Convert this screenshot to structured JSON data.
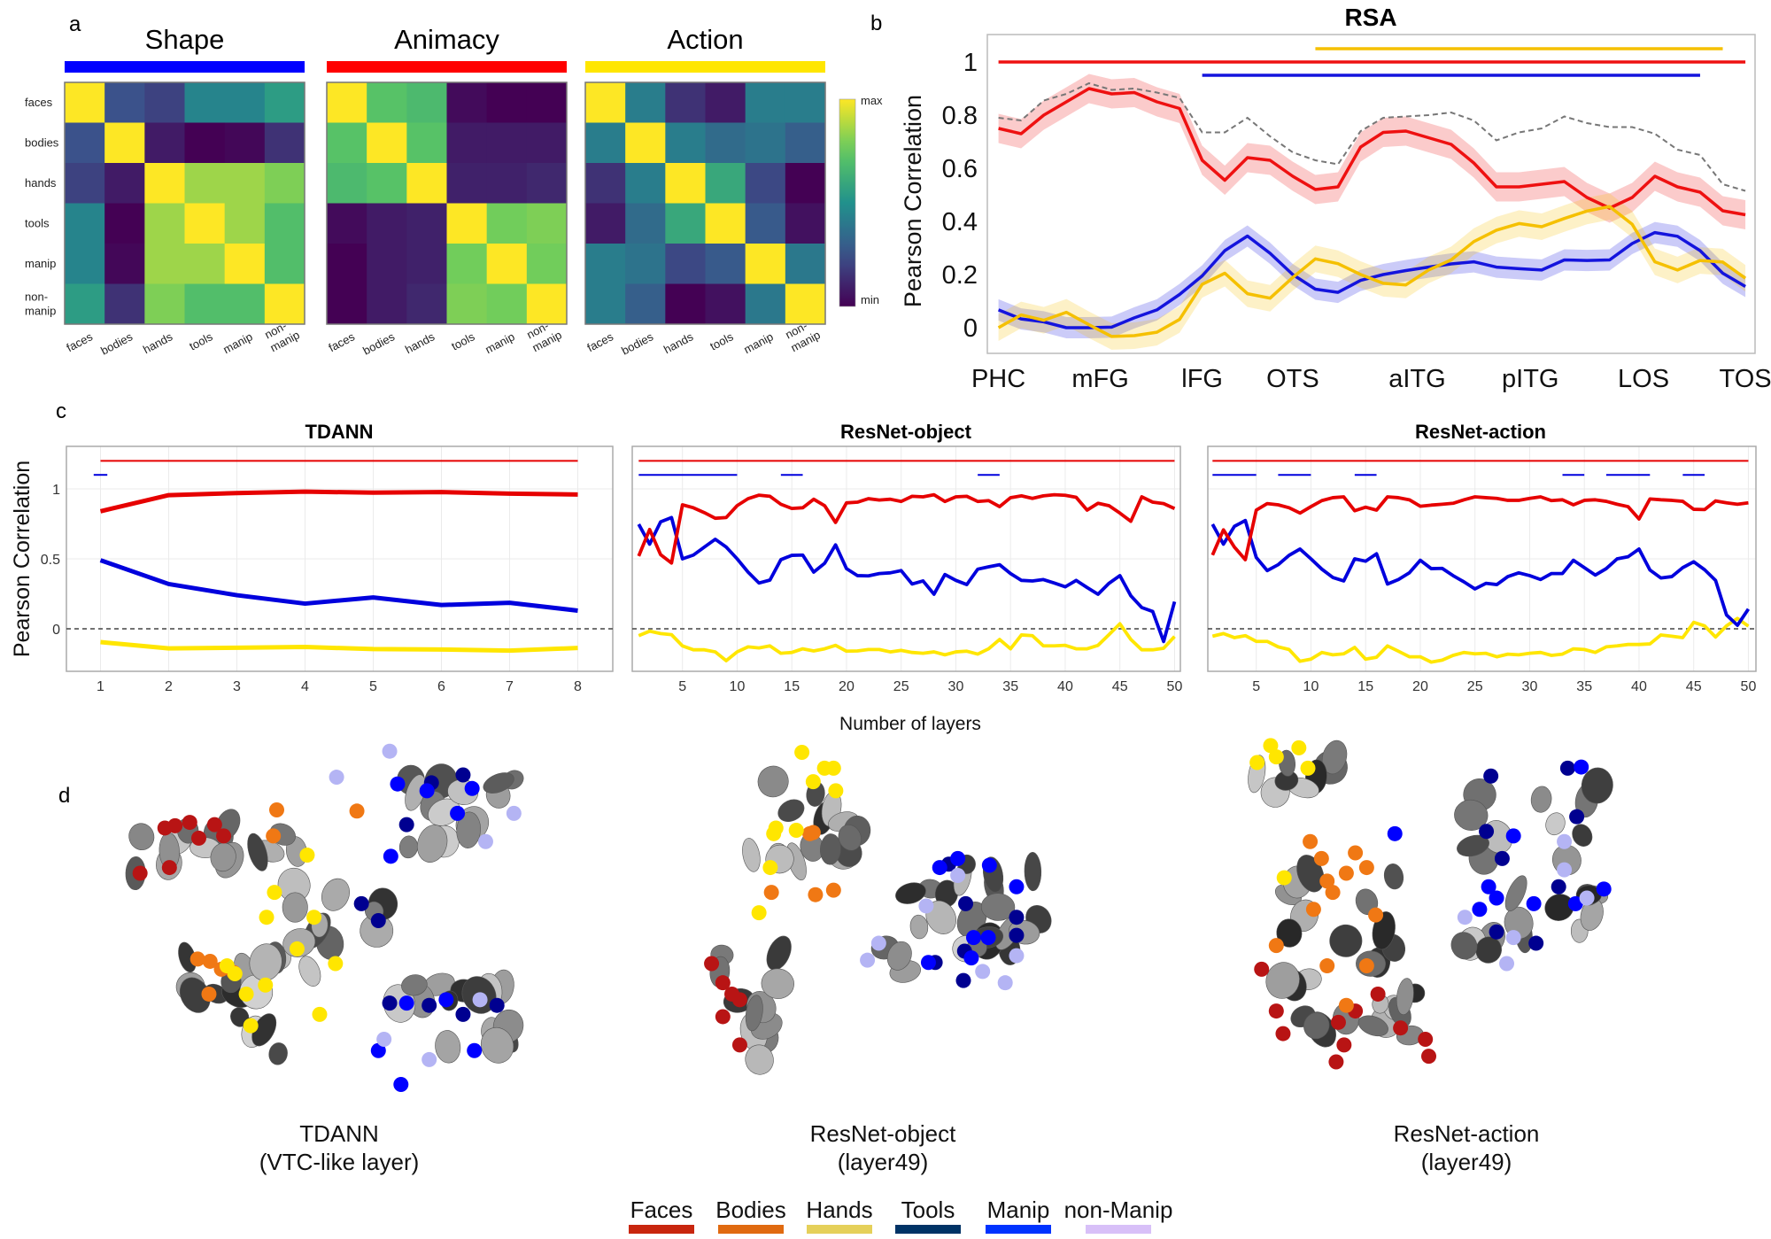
{
  "panel_labels": {
    "a": "a",
    "b": "b",
    "c": "c",
    "d": "d"
  },
  "colorbar": {
    "max_label": "max",
    "min_label": "min",
    "colormap": "viridis"
  },
  "chart_data": [
    {
      "type": "heatmap",
      "title": "Shape",
      "bar_color": "#0000ff",
      "row_labels": [
        "faces",
        "bodies",
        "hands",
        "tools",
        "manip",
        "non-manip"
      ],
      "col_labels": [
        "faces",
        "bodies",
        "hands",
        "tools",
        "manip",
        "non-manip"
      ],
      "values": [
        [
          1.0,
          0.25,
          0.2,
          0.45,
          0.45,
          0.55
        ],
        [
          0.25,
          1.0,
          0.08,
          0.0,
          0.02,
          0.15
        ],
        [
          0.2,
          0.08,
          1.0,
          0.85,
          0.85,
          0.8
        ],
        [
          0.45,
          0.0,
          0.85,
          1.0,
          0.85,
          0.7
        ],
        [
          0.45,
          0.02,
          0.85,
          0.85,
          1.0,
          0.7
        ],
        [
          0.55,
          0.15,
          0.8,
          0.7,
          0.7,
          1.0
        ]
      ]
    },
    {
      "type": "heatmap",
      "title": "Animacy",
      "bar_color": "#ff0000",
      "row_labels": [
        "faces",
        "bodies",
        "hands",
        "tools",
        "manip",
        "non-manip"
      ],
      "col_labels": [
        "faces",
        "bodies",
        "hands",
        "tools",
        "manip",
        "non-manip"
      ],
      "values": [
        [
          1.0,
          0.72,
          0.68,
          0.03,
          0.0,
          0.0
        ],
        [
          0.72,
          1.0,
          0.72,
          0.08,
          0.08,
          0.08
        ],
        [
          0.68,
          0.72,
          1.0,
          0.1,
          0.1,
          0.12
        ],
        [
          0.03,
          0.08,
          0.1,
          1.0,
          0.78,
          0.8
        ],
        [
          0.0,
          0.08,
          0.1,
          0.78,
          1.0,
          0.78
        ],
        [
          0.0,
          0.08,
          0.12,
          0.8,
          0.78,
          1.0
        ]
      ]
    },
    {
      "type": "heatmap",
      "title": "Action",
      "bar_color": "#ffe600",
      "row_labels": [
        "faces",
        "bodies",
        "hands",
        "tools",
        "manip",
        "non-manip"
      ],
      "col_labels": [
        "faces",
        "bodies",
        "hands",
        "tools",
        "manip",
        "non-manip"
      ],
      "values": [
        [
          1.0,
          0.42,
          0.15,
          0.08,
          0.42,
          0.42
        ],
        [
          0.42,
          1.0,
          0.42,
          0.35,
          0.38,
          0.3
        ],
        [
          0.15,
          0.42,
          1.0,
          0.6,
          0.22,
          0.0
        ],
        [
          0.08,
          0.35,
          0.6,
          1.0,
          0.28,
          0.05
        ],
        [
          0.42,
          0.38,
          0.22,
          0.28,
          1.0,
          0.4
        ],
        [
          0.42,
          0.3,
          0.0,
          0.05,
          0.4,
          1.0
        ]
      ]
    },
    {
      "type": "line",
      "title": "RSA",
      "ylabel": "Pearson Correlation",
      "x_tick_labels": [
        "PHC",
        "mFG",
        "lFG",
        "OTS",
        "aITG",
        "pITG",
        "LOS",
        "TOS"
      ],
      "x_tick_positions": [
        1,
        5.5,
        10,
        14,
        19.5,
        24.5,
        29.5,
        34
      ],
      "y_ticks": [
        0,
        0.2,
        0.4,
        0.6,
        0.8,
        1
      ],
      "y_tick_labels": [
        "0",
        "0.2",
        "0.4",
        "0.6",
        "0.8",
        "1"
      ],
      "ylim": [
        -0.1,
        1.1
      ],
      "xlim": [
        1,
        34
      ],
      "grid": false,
      "noise_ceiling": {
        "color": "#777777",
        "style": "dashed",
        "values": [
          0.79,
          0.78,
          0.855,
          0.88,
          0.92,
          0.895,
          0.9,
          0.885,
          0.865,
          0.735,
          0.735,
          0.79,
          0.72,
          0.66,
          0.63,
          0.615,
          0.74,
          0.79,
          0.795,
          0.8,
          0.81,
          0.78,
          0.705,
          0.735,
          0.75,
          0.795,
          0.77,
          0.755,
          0.755,
          0.73,
          0.67,
          0.65,
          0.54,
          0.515
        ]
      },
      "series": [
        {
          "color": "#ee1111",
          "ci_halfwidth": 0.055,
          "values": [
            0.75,
            0.73,
            0.8,
            0.85,
            0.9,
            0.88,
            0.885,
            0.85,
            0.825,
            0.63,
            0.555,
            0.64,
            0.63,
            0.57,
            0.52,
            0.53,
            0.68,
            0.735,
            0.74,
            0.715,
            0.69,
            0.62,
            0.53,
            0.53,
            0.54,
            0.55,
            0.49,
            0.45,
            0.49,
            0.57,
            0.53,
            0.51,
            0.44,
            0.425
          ]
        },
        {
          "color": "#1414dd",
          "ci_halfwidth": 0.04,
          "values": [
            0.067,
            0.033,
            0.022,
            0.0,
            0.0,
            0.002,
            0.037,
            0.067,
            0.125,
            0.195,
            0.29,
            0.345,
            0.28,
            0.2,
            0.145,
            0.133,
            0.178,
            0.2,
            0.215,
            0.228,
            0.24,
            0.248,
            0.228,
            0.222,
            0.217,
            0.255,
            0.253,
            0.255,
            0.317,
            0.358,
            0.344,
            0.29,
            0.205,
            0.155
          ]
        },
        {
          "color": "#f5c000",
          "ci_halfwidth": 0.05,
          "values": [
            0.0,
            0.048,
            0.028,
            0.058,
            0.011,
            -0.033,
            -0.03,
            -0.017,
            0.031,
            0.163,
            0.205,
            0.128,
            0.111,
            0.189,
            0.259,
            0.241,
            0.2,
            0.167,
            0.161,
            0.217,
            0.255,
            0.324,
            0.367,
            0.392,
            0.38,
            0.411,
            0.439,
            0.456,
            0.389,
            0.248,
            0.217,
            0.253,
            0.247,
            0.186
          ]
        }
      ],
      "significance": [
        {
          "color": "#f5c000",
          "y": 1.05,
          "segments": [
            [
              15,
              33
            ]
          ]
        },
        {
          "color": "#ee1111",
          "y": 1.0,
          "segments": [
            [
              1,
              34
            ]
          ]
        },
        {
          "color": "#1414dd",
          "y": 0.95,
          "segments": [
            [
              10,
              32
            ]
          ]
        }
      ]
    },
    {
      "type": "line",
      "title": "TDANN",
      "ylabel": "Pearson Correlation",
      "xlabel": "Number of layers",
      "x": [
        1,
        2,
        3,
        4,
        5,
        6,
        7,
        8
      ],
      "x_ticks": [
        1,
        2,
        3,
        4,
        5,
        6,
        7,
        8
      ],
      "y_ticks": [
        0,
        0.5,
        1
      ],
      "y_tick_labels": [
        "0",
        "0.5",
        "1"
      ],
      "ylim": [
        -0.3,
        1.3
      ],
      "grid": true,
      "reference_line": {
        "y": 0,
        "style": "dashed"
      },
      "series": [
        {
          "color": "#e60000",
          "values": [
            0.84,
            0.955,
            0.97,
            0.98,
            0.973,
            0.977,
            0.966,
            0.96
          ]
        },
        {
          "color": "#0000dd",
          "values": [
            0.49,
            0.32,
            0.24,
            0.18,
            0.224,
            0.17,
            0.186,
            0.13
          ]
        },
        {
          "color": "#ffe600",
          "values": [
            -0.095,
            -0.14,
            -0.135,
            -0.13,
            -0.145,
            -0.148,
            -0.156,
            -0.137
          ]
        }
      ],
      "significance": [
        {
          "color": "#e60000",
          "y": 1.2,
          "segments": [
            [
              1,
              8
            ]
          ]
        },
        {
          "color": "#0000dd",
          "y": 1.1,
          "segments": [
            [
              0.9,
              1.1
            ]
          ]
        }
      ]
    },
    {
      "type": "line",
      "title": "ResNet-object",
      "xlabel": "Number of layers",
      "x_ticks": [
        5,
        10,
        15,
        20,
        25,
        30,
        35,
        40,
        45,
        50
      ],
      "xlim": [
        1,
        50
      ],
      "y_ticks": [
        0,
        0.5,
        1
      ],
      "ylim": [
        -0.3,
        1.3
      ],
      "grid": true,
      "reference_line": {
        "y": 0,
        "style": "dashed"
      },
      "series": [
        {
          "color": "#e60000",
          "values": [
            0.52,
            0.71,
            0.53,
            0.47,
            0.886,
            0.865,
            0.83,
            0.79,
            0.795,
            0.88,
            0.93,
            0.955,
            0.947,
            0.89,
            0.86,
            0.865,
            0.926,
            0.88,
            0.76,
            0.9,
            0.905,
            0.93,
            0.92,
            0.926,
            0.91,
            0.947,
            0.943,
            0.958,
            0.91,
            0.943,
            0.947,
            0.91,
            0.916,
            0.873,
            0.937,
            0.95,
            0.932,
            0.95,
            0.958,
            0.954,
            0.94,
            0.848,
            0.897,
            0.88,
            0.827,
            0.768,
            0.943,
            0.905,
            0.895,
            0.859
          ]
        },
        {
          "color": "#0000dd",
          "values": [
            0.747,
            0.605,
            0.764,
            0.795,
            0.5,
            0.527,
            0.584,
            0.64,
            0.584,
            0.5,
            0.405,
            0.327,
            0.348,
            0.494,
            0.525,
            0.527,
            0.405,
            0.468,
            0.6,
            0.43,
            0.38,
            0.378,
            0.395,
            0.4,
            0.416,
            0.32,
            0.342,
            0.247,
            0.388,
            0.346,
            0.316,
            0.426,
            0.443,
            0.458,
            0.395,
            0.346,
            0.342,
            0.352,
            0.327,
            0.3,
            0.346,
            0.295,
            0.247,
            0.325,
            0.38,
            0.236,
            0.152,
            0.124,
            -0.091,
            0.194
          ]
        },
        {
          "color": "#ffe600",
          "values": [
            -0.049,
            -0.017,
            -0.034,
            -0.042,
            -0.122,
            -0.15,
            -0.15,
            -0.165,
            -0.228,
            -0.165,
            -0.129,
            -0.137,
            -0.122,
            -0.175,
            -0.169,
            -0.143,
            -0.158,
            -0.143,
            -0.118,
            -0.16,
            -0.158,
            -0.148,
            -0.148,
            -0.165,
            -0.154,
            -0.169,
            -0.175,
            -0.165,
            -0.186,
            -0.165,
            -0.16,
            -0.181,
            -0.143,
            -0.076,
            -0.143,
            -0.044,
            -0.049,
            -0.122,
            -0.122,
            -0.118,
            -0.143,
            -0.143,
            -0.118,
            -0.042,
            0.036,
            -0.076,
            -0.15,
            -0.15,
            -0.139,
            -0.055
          ]
        }
      ],
      "significance": [
        {
          "color": "#e60000",
          "y": 1.2,
          "segments": [
            [
              1,
              50
            ]
          ]
        },
        {
          "color": "#0000dd",
          "y": 1.1,
          "segments": [
            [
              1,
              10
            ],
            [
              14,
              16
            ],
            [
              32,
              34
            ]
          ]
        }
      ]
    },
    {
      "type": "line",
      "title": "ResNet-action",
      "xlabel": "Number of layers",
      "x_ticks": [
        5,
        10,
        15,
        20,
        25,
        30,
        35,
        40,
        45,
        50
      ],
      "xlim": [
        1,
        50
      ],
      "y_ticks": [
        0,
        0.5,
        1
      ],
      "ylim": [
        -0.3,
        1.3
      ],
      "grid": true,
      "reference_line": {
        "y": 0,
        "style": "dashed"
      },
      "series": [
        {
          "color": "#e60000",
          "values": [
            0.527,
            0.707,
            0.584,
            0.494,
            0.848,
            0.895,
            0.886,
            0.865,
            0.827,
            0.873,
            0.916,
            0.937,
            0.943,
            0.844,
            0.869,
            0.848,
            0.943,
            0.937,
            0.922,
            0.876,
            0.884,
            0.89,
            0.897,
            0.922,
            0.943,
            0.937,
            0.932,
            0.918,
            0.918,
            0.932,
            0.943,
            0.916,
            0.922,
            0.886,
            0.918,
            0.922,
            0.911,
            0.89,
            0.873,
            0.785,
            0.928,
            0.922,
            0.918,
            0.911,
            0.854,
            0.852,
            0.914,
            0.9,
            0.89,
            0.9
          ]
        },
        {
          "color": "#0000dd",
          "values": [
            0.747,
            0.605,
            0.732,
            0.774,
            0.51,
            0.416,
            0.458,
            0.525,
            0.57,
            0.5,
            0.426,
            0.367,
            0.342,
            0.5,
            0.483,
            0.536,
            0.32,
            0.352,
            0.4,
            0.49,
            0.43,
            0.432,
            0.38,
            0.335,
            0.285,
            0.325,
            0.316,
            0.373,
            0.4,
            0.38,
            0.352,
            0.395,
            0.395,
            0.49,
            0.437,
            0.384,
            0.43,
            0.5,
            0.515,
            0.57,
            0.42,
            0.363,
            0.373,
            0.437,
            0.479,
            0.422,
            0.346,
            0.099,
            0.025,
            0.141
          ]
        },
        {
          "color": "#ffe600",
          "values": [
            -0.053,
            -0.034,
            -0.063,
            -0.049,
            -0.09,
            -0.09,
            -0.129,
            -0.148,
            -0.232,
            -0.217,
            -0.169,
            -0.186,
            -0.179,
            -0.133,
            -0.217,
            -0.203,
            -0.122,
            -0.16,
            -0.2,
            -0.2,
            -0.238,
            -0.224,
            -0.19,
            -0.169,
            -0.179,
            -0.175,
            -0.2,
            -0.181,
            -0.186,
            -0.175,
            -0.169,
            -0.19,
            -0.181,
            -0.143,
            -0.148,
            -0.169,
            -0.129,
            -0.122,
            -0.112,
            -0.112,
            -0.108,
            -0.044,
            -0.053,
            -0.063,
            0.046,
            0.021,
            -0.059,
            0.021,
            0.074,
            0.019
          ]
        }
      ],
      "significance": [
        {
          "color": "#e60000",
          "y": 1.2,
          "segments": [
            [
              1,
              50
            ]
          ]
        },
        {
          "color": "#0000dd",
          "y": 1.1,
          "segments": [
            [
              1,
              5
            ],
            [
              7,
              10
            ],
            [
              14,
              16
            ],
            [
              33,
              35
            ],
            [
              37,
              41
            ],
            [
              44,
              46
            ]
          ]
        }
      ]
    }
  ],
  "panel_c": {
    "ylabel": "Pearson Correlation",
    "xlabel": "Number of layers"
  },
  "panel_d": {
    "captions": [
      {
        "line1": "TDANN",
        "line2": "(VTC-like layer)"
      },
      {
        "line1": "ResNet-object",
        "line2": "(layer49)"
      },
      {
        "line1": "ResNet-action",
        "line2": "(layer49)"
      }
    ],
    "legend": [
      {
        "label": "Faces",
        "color": "#c8260e",
        "dot_color": "#b81414"
      },
      {
        "label": "Bodies",
        "color": "#e06a10",
        "dot_color": "#f07814"
      },
      {
        "label": "Hands",
        "color": "#e5d05a",
        "dot_color": "#ffe600"
      },
      {
        "label": "Tools",
        "color": "#003366",
        "dot_color": "#000090"
      },
      {
        "label": "Manip",
        "color": "#0033ff",
        "dot_color": "#0000ff"
      },
      {
        "label": "non-Manip",
        "color": "#d8c0f8",
        "dot_color": "#b4b4f4"
      }
    ]
  }
}
